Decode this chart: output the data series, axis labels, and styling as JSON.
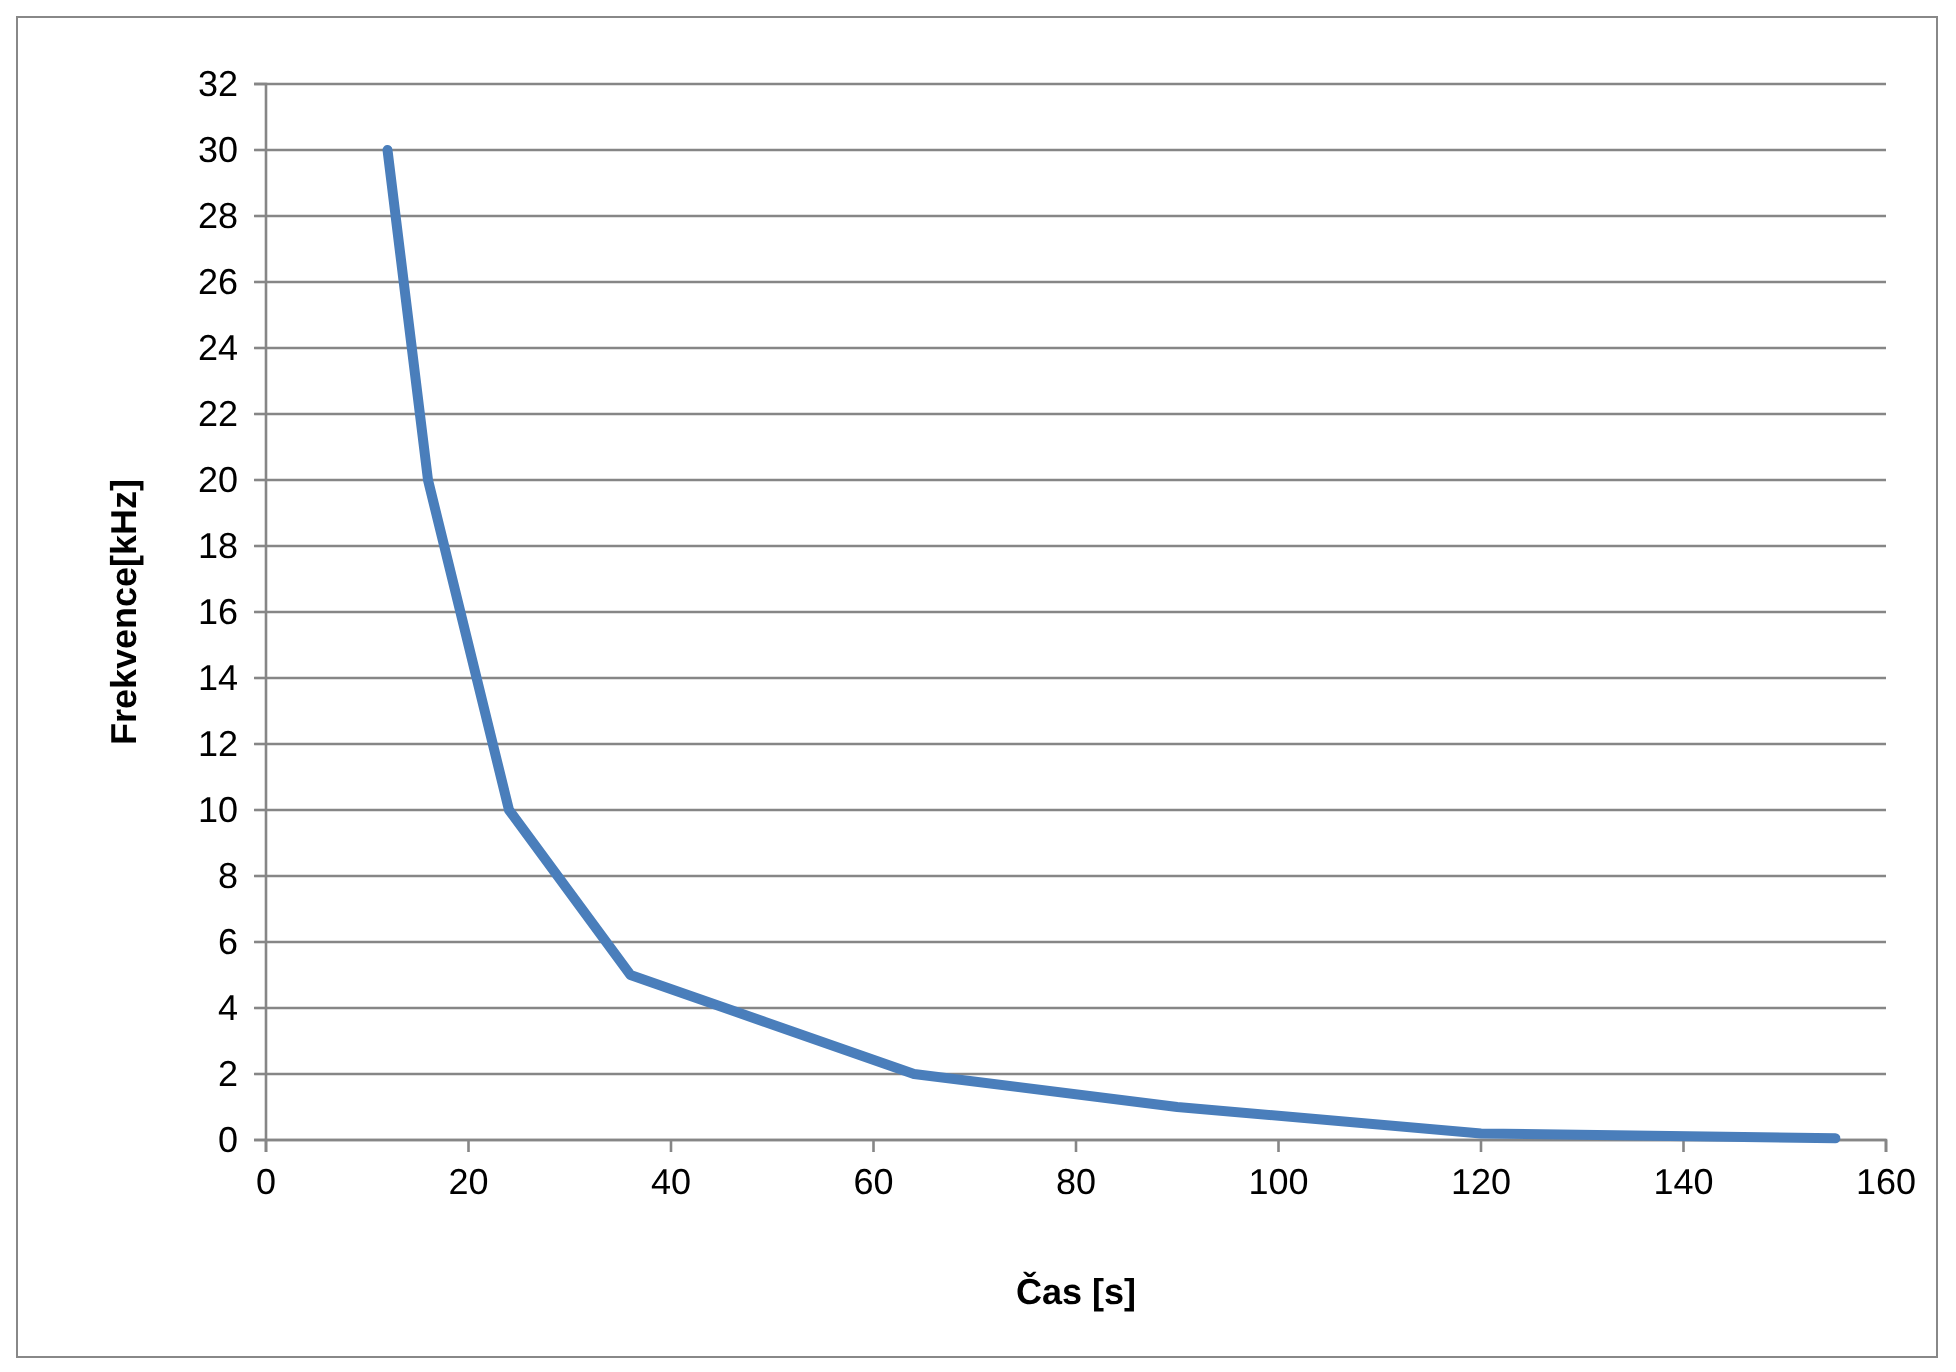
{
  "chart_data": {
    "type": "line",
    "xlabel": "Čas [s]",
    "ylabel": "Frekvence[kHz]",
    "x": [
      12,
      16,
      24,
      36,
      64,
      90,
      120,
      155
    ],
    "series": [
      {
        "color": "#4a7ebb",
        "values": [
          30,
          20,
          10,
          5,
          2,
          1,
          0.2,
          0.05
        ]
      }
    ],
    "xlim": [
      0,
      160
    ],
    "xticks": [
      0,
      20,
      40,
      60,
      80,
      100,
      120,
      140,
      160
    ],
    "ylim": [
      0,
      32
    ],
    "yticks": [
      0,
      2,
      4,
      6,
      8,
      10,
      12,
      14,
      16,
      18,
      20,
      22,
      24,
      26,
      28,
      30,
      32
    ],
    "grid": "y",
    "marker": "none",
    "line_style": "solid"
  }
}
